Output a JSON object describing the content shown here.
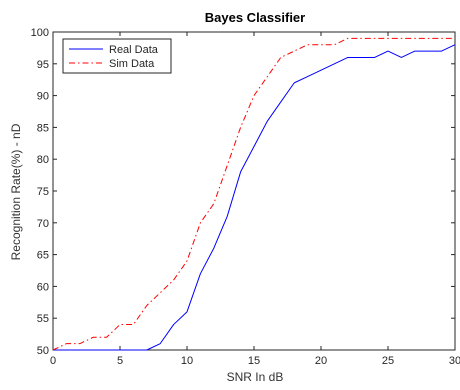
{
  "chart_data": {
    "type": "line",
    "title": "Bayes Classifier",
    "xlabel": "SNR In dB",
    "ylabel": "Recognition Rate(%)  - nD",
    "xlim": [
      0,
      30
    ],
    "ylim": [
      50,
      100
    ],
    "x_ticks": [
      0,
      5,
      10,
      15,
      20,
      25,
      30
    ],
    "y_ticks": [
      50,
      55,
      60,
      65,
      70,
      75,
      80,
      85,
      90,
      95,
      100
    ],
    "grid": false,
    "legend_position": "top-left",
    "x": [
      0,
      1,
      2,
      3,
      4,
      5,
      6,
      7,
      8,
      9,
      10,
      11,
      12,
      13,
      14,
      15,
      16,
      17,
      18,
      19,
      20,
      21,
      22,
      23,
      24,
      25,
      26,
      27,
      28,
      29,
      30
    ],
    "series": [
      {
        "name": "Real Data",
        "color": "#0000ff",
        "line_style": "solid",
        "values": [
          50,
          50,
          50,
          50,
          50,
          50,
          50,
          50,
          51,
          54,
          56,
          62,
          66,
          71,
          78,
          82,
          86,
          89,
          92,
          93,
          94,
          95,
          96,
          96,
          96,
          97,
          96,
          97,
          97,
          97,
          98
        ]
      },
      {
        "name": "Sim Data",
        "color": "#ff0000",
        "line_style": "dash-dot",
        "values": [
          50,
          51,
          51,
          52,
          52,
          54,
          54,
          57,
          59,
          61,
          64,
          70,
          73,
          79,
          85,
          90,
          93,
          96,
          97,
          98,
          98,
          98,
          99,
          99,
          99,
          99,
          99,
          99,
          99,
          99,
          99
        ]
      }
    ]
  }
}
